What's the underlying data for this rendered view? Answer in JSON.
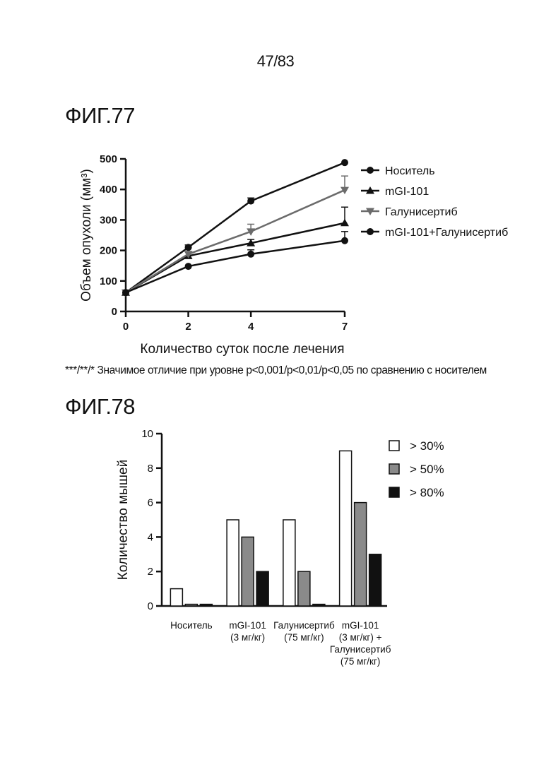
{
  "page_number": "47/83",
  "fig77": {
    "title": "ФИГ.77",
    "footnote": "***/**/* Значимое отличие при уровне p<0,001/p<0,01/p<0,05 по сравнению с носителем"
  },
  "fig78": {
    "title": "ФИГ.78"
  },
  "chart_data": [
    {
      "type": "line",
      "xlabel": "Количество суток после лечения",
      "ylabel": "Объем опухоли (мм³)",
      "x": [
        0,
        2,
        4,
        7
      ],
      "x_ticks": [
        "0",
        "2",
        "4",
        "7"
      ],
      "xlim": [
        0,
        7
      ],
      "y_ticks": [
        "0",
        "100",
        "200",
        "300",
        "400",
        "500"
      ],
      "ylim": [
        0,
        500
      ],
      "legend_position": "right",
      "grid": false,
      "series": [
        {
          "name": "Носитель",
          "values": [
            62,
            210,
            362,
            488
          ],
          "error": [
            0,
            8,
            10,
            0
          ],
          "marker": "circle",
          "color": "#111111"
        },
        {
          "name": "mGI-101",
          "values": [
            62,
            182,
            224,
            290
          ],
          "error": [
            0,
            0,
            12,
            52
          ],
          "marker": "triangle-up",
          "color": "#111111"
        },
        {
          "name": "Галунисертиб",
          "values": [
            62,
            188,
            262,
            398
          ],
          "error": [
            0,
            0,
            24,
            46
          ],
          "marker": "triangle-down",
          "color": "#6b6b6b"
        },
        {
          "name": "mGI-101+Галунисертиб",
          "values": [
            62,
            148,
            188,
            232
          ],
          "error": [
            0,
            0,
            14,
            30
          ],
          "marker": "circle",
          "color": "#111111"
        }
      ]
    },
    {
      "type": "bar",
      "ylabel": "Количество мышей",
      "categories": [
        "Носитель",
        "mGI-101\n(3 мг/кг)",
        "Галунисертиб\n(75 мг/кг)",
        "mGI-101\n(3 мг/кг) +\nГалунисертиб\n(75 мг/кг)"
      ],
      "y_ticks": [
        "0",
        "2",
        "4",
        "6",
        "8",
        "10"
      ],
      "ylim": [
        0,
        10
      ],
      "legend_position": "top-right",
      "grid": false,
      "series": [
        {
          "name": "> 30%",
          "values": [
            1,
            5,
            5,
            9
          ],
          "color": "#ffffff"
        },
        {
          "name": "> 50%",
          "values": [
            0.1,
            4,
            2,
            6
          ],
          "color": "#8a8a8a"
        },
        {
          "name": "> 80%",
          "values": [
            0.1,
            2,
            0.1,
            3
          ],
          "color": "#111111"
        }
      ]
    }
  ]
}
